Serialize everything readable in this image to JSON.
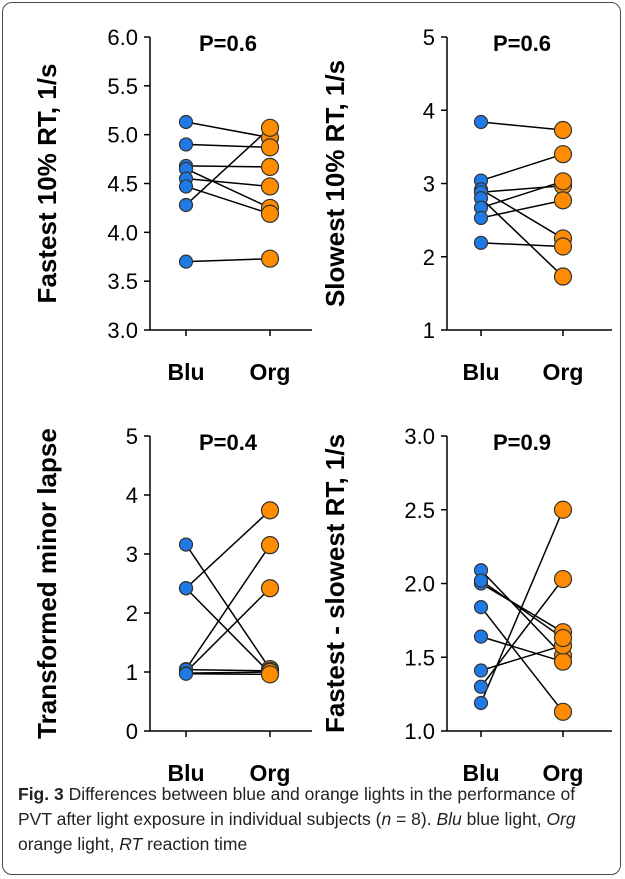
{
  "chart_data": [
    {
      "type": "scatter",
      "ylabel": "Fastest 10% RT, 1/s",
      "stat": "P=0.6",
      "ylim": [
        3.0,
        6.0
      ],
      "yticks": [
        "3.0",
        "3.5",
        "4.0",
        "4.5",
        "5.0",
        "5.5",
        "6.0"
      ],
      "categories": [
        "Blu",
        "Org"
      ],
      "pairs": [
        [
          5.13,
          4.97
        ],
        [
          4.9,
          4.87
        ],
        [
          4.68,
          4.67
        ],
        [
          4.65,
          4.25
        ],
        [
          4.55,
          4.47
        ],
        [
          4.47,
          4.19
        ],
        [
          4.28,
          5.07
        ],
        [
          3.7,
          3.73
        ]
      ]
    },
    {
      "type": "scatter",
      "ylabel": "Slowest 10% RT, 1/s",
      "stat": "P=0.6",
      "ylim": [
        1,
        5
      ],
      "yticks": [
        "1",
        "2",
        "3",
        "4",
        "5"
      ],
      "categories": [
        "Blu",
        "Org"
      ],
      "pairs": [
        [
          3.84,
          3.73
        ],
        [
          3.04,
          3.4
        ],
        [
          2.92,
          2.25
        ],
        [
          2.88,
          2.97
        ],
        [
          2.8,
          1.73
        ],
        [
          2.67,
          3.03
        ],
        [
          2.53,
          2.77
        ],
        [
          2.19,
          2.14
        ]
      ]
    },
    {
      "type": "scatter",
      "ylabel": "Transformed minor lapse",
      "stat": "P=0.4",
      "ylim": [
        0,
        5
      ],
      "yticks": [
        "0",
        "1",
        "2",
        "3",
        "4",
        "5"
      ],
      "categories": [
        "Blu",
        "Org"
      ],
      "pairs": [
        [
          3.16,
          1.05
        ],
        [
          2.42,
          3.74
        ],
        [
          2.42,
          0.98
        ],
        [
          1.05,
          3.15
        ],
        [
          1.0,
          2.42
        ],
        [
          1.04,
          1.02
        ],
        [
          0.98,
          1.0
        ],
        [
          0.97,
          0.96
        ]
      ]
    },
    {
      "type": "scatter",
      "ylabel": "Fastest - slowest RT, 1/s",
      "stat": "P=0.9",
      "ylim": [
        1.0,
        3.0
      ],
      "yticks": [
        "1.0",
        "1.5",
        "2.0",
        "2.5",
        "3.0"
      ],
      "categories": [
        "Blu",
        "Org"
      ],
      "pairs": [
        [
          2.09,
          1.51
        ],
        [
          2.0,
          1.67
        ],
        [
          1.84,
          1.13
        ],
        [
          1.64,
          1.47
        ],
        [
          1.41,
          1.58
        ],
        [
          1.3,
          2.03
        ],
        [
          1.19,
          2.5
        ],
        [
          2.02,
          1.63
        ]
      ]
    }
  ],
  "colors": {
    "blue": "#1f7ae6",
    "orange": "#ff8c00",
    "marker_edge": "#333333",
    "line": "#000000"
  },
  "caption": {
    "label": "Fig. 3",
    "text_a": " Differences between blue and orange lights in the performance of PVT after light exposure in individual subjects (",
    "n_symbol": "n",
    "n_value": " = 8). ",
    "abbr1": "Blu",
    "def1": " blue light, ",
    "abbr2": "Org",
    "def2": " orange light, ",
    "abbr3": "RT",
    "def3": " reaction time"
  }
}
